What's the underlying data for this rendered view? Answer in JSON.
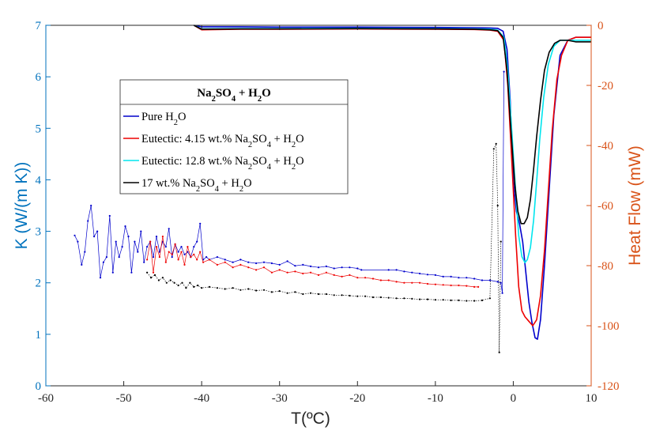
{
  "chart_data": {
    "type": "line",
    "xlabel": "T(ºC)",
    "ylabel_left": "K (W/(m K))",
    "ylabel_right": "Heat Flow (mW)",
    "xlim": [
      -60,
      10
    ],
    "ylim_left": [
      0,
      7
    ],
    "ylim_right": [
      -120,
      0
    ],
    "x_ticks": [
      -60,
      -50,
      -40,
      -30,
      -20,
      -10,
      0,
      10
    ],
    "y_left_ticks": [
      0,
      1,
      2,
      3,
      4,
      5,
      6,
      7
    ],
    "y_right_ticks": [
      -120,
      -100,
      -80,
      -60,
      -40,
      -20,
      0
    ],
    "colors": {
      "left_axis": "#0072bd",
      "right_axis": "#d95319",
      "pure": "#0000cc",
      "eutectic_415": "#ee0000",
      "eutectic_128": "#00e5ee",
      "wt17": "#000000"
    },
    "legend": {
      "title_parts": [
        [
          "Na",
          "normal"
        ],
        [
          "2",
          "sub"
        ],
        [
          "SO",
          "normal"
        ],
        [
          "4",
          "sub"
        ],
        [
          " + H",
          "normal"
        ],
        [
          "2",
          "sub"
        ],
        [
          "O",
          "normal"
        ]
      ],
      "entries": [
        {
          "color": "#0000cc",
          "parts": [
            [
              "Pure H",
              "normal"
            ],
            [
              "2",
              "sub"
            ],
            [
              "O",
              "normal"
            ]
          ]
        },
        {
          "color": "#ee0000",
          "parts": [
            [
              "Eutectic: 4.15 wt.% Na",
              "normal"
            ],
            [
              "2",
              "sub"
            ],
            [
              "SO",
              "normal"
            ],
            [
              "4",
              "sub"
            ],
            [
              " + H",
              "normal"
            ],
            [
              "2",
              "sub"
            ],
            [
              "O",
              "normal"
            ]
          ]
        },
        {
          "color": "#00e5ee",
          "parts": [
            [
              "Eutectic: 12.8 wt.% Na",
              "normal"
            ],
            [
              "2",
              "sub"
            ],
            [
              "SO",
              "normal"
            ],
            [
              "4",
              "sub"
            ],
            [
              " + H",
              "normal"
            ],
            [
              "2",
              "sub"
            ],
            [
              "O",
              "normal"
            ]
          ]
        },
        {
          "color": "#000000",
          "parts": [
            [
              "17 wt.% Na",
              "normal"
            ],
            [
              "2",
              "sub"
            ],
            [
              "SO",
              "normal"
            ],
            [
              "4",
              "sub"
            ],
            [
              " + H",
              "normal"
            ],
            [
              "2",
              "sub"
            ],
            [
              "O",
              "normal"
            ]
          ]
        }
      ]
    },
    "series_heatflow": [
      {
        "name": "Pure H2O",
        "color": "#0000cc",
        "x": [
          -41,
          -40,
          -35,
          -30,
          -20,
          -10,
          -5,
          -3,
          -2,
          -1.3,
          -0.8,
          -0.4,
          0,
          0.4,
          0.8,
          1.2,
          1.6,
          2.0,
          2.4,
          2.8,
          3.1,
          3.5,
          4.0,
          4.6,
          5.2,
          6,
          7,
          8,
          9,
          10
        ],
        "y": [
          0,
          -0.5,
          -0.5,
          -0.6,
          -0.6,
          -0.7,
          -0.8,
          -0.9,
          -1.0,
          -2,
          -8,
          -25,
          -52,
          -62,
          -66,
          -72,
          -82,
          -92,
          -99,
          -104,
          -104.5,
          -98,
          -80,
          -55,
          -30,
          -10,
          -5,
          -4,
          -4,
          -4
        ]
      },
      {
        "name": "Eutectic: 4.15 wt.% Na2SO4 + H2O",
        "color": "#ee0000",
        "x": [
          -41,
          -40,
          -35,
          -30,
          -20,
          -10,
          -5,
          -3,
          -2,
          -1.2,
          -0.7,
          -0.2,
          0.3,
          0.7,
          1.1,
          1.5,
          2.0,
          2.5,
          3.0,
          3.5,
          4.0,
          4.5,
          5.0,
          5.6,
          6.2,
          7,
          8,
          9,
          10
        ],
        "y": [
          0,
          -1.5,
          -1.3,
          -1.3,
          -1.2,
          -1.3,
          -1.4,
          -1.6,
          -2,
          -5,
          -20,
          -45,
          -70,
          -87,
          -95,
          -97,
          -98.5,
          -100,
          -98,
          -90,
          -75,
          -55,
          -35,
          -18,
          -10,
          -5,
          -4,
          -4,
          -4
        ]
      },
      {
        "name": "Eutectic: 12.8 wt.% Na2SO4 + H2O",
        "color": "#00e5ee",
        "x": [
          -41,
          -40,
          -35,
          -30,
          -20,
          -10,
          -5,
          -3,
          -2,
          -1.2,
          -0.7,
          -0.2,
          0.3,
          0.7,
          1.1,
          1.5,
          1.8,
          2.2,
          2.6,
          3.0,
          3.4,
          3.9,
          4.5,
          5.2,
          6,
          7,
          8,
          10
        ],
        "y": [
          0,
          -1.2,
          -1.1,
          -1.1,
          -1.0,
          -1.1,
          -1.2,
          -1.3,
          -1.6,
          -4,
          -15,
          -35,
          -55,
          -70,
          -77,
          -79,
          -78,
          -74,
          -65,
          -52,
          -38,
          -24,
          -13,
          -7,
          -5,
          -5,
          -5,
          -5
        ]
      },
      {
        "name": "17 wt.% Na2SO4 + H2O",
        "color": "#000000",
        "x": [
          -41,
          -40,
          -35,
          -30,
          -20,
          -10,
          -5,
          -3,
          -2,
          -1.3,
          -0.8,
          -0.3,
          0.2,
          0.6,
          1.0,
          1.4,
          1.8,
          2.2,
          2.6,
          3.0,
          3.5,
          4.0,
          4.6,
          5.3,
          6,
          7,
          8,
          10
        ],
        "y": [
          0,
          -1.3,
          -1.2,
          -1.2,
          -1.1,
          -1.2,
          -1.3,
          -1.5,
          -1.8,
          -4,
          -15,
          -35,
          -53,
          -62,
          -66,
          -66,
          -64,
          -58,
          -48,
          -37,
          -25,
          -15,
          -9,
          -6,
          -5,
          -5,
          -5.5,
          -5.5
        ]
      }
    ],
    "series_conductivity": [
      {
        "name": "Pure H2O",
        "color": "#0000cc",
        "x": [
          -56.3,
          -55.9,
          -55.4,
          -55.0,
          -54.6,
          -54.2,
          -53.8,
          -53.4,
          -53.0,
          -52.6,
          -52.2,
          -51.8,
          -51.4,
          -51.0,
          -50.6,
          -50.2,
          -49.8,
          -49.4,
          -49.0,
          -48.6,
          -48.2,
          -47.8,
          -47.4,
          -47.0,
          -46.6,
          -46.2,
          -45.8,
          -45.4,
          -45.0,
          -44.6,
          -44.2,
          -43.8,
          -43.4,
          -43.0,
          -42.6,
          -42.2,
          -41.8,
          -41.4,
          -41.0,
          -40.6,
          -40.2,
          -39.8,
          -39.4,
          -39.0,
          -38.0,
          -37.0,
          -36.0,
          -35.0,
          -34.0,
          -33.0,
          -32.0,
          -31.0,
          -30.0,
          -29.0,
          -28.0,
          -27.0,
          -26.0,
          -25.0,
          -24.0,
          -23.0,
          -22.0,
          -21.0,
          -20.0,
          -19.5,
          -16.0,
          -15.0,
          -14.0,
          -13.0,
          -12.0,
          -11.0,
          -10.0,
          -9.0,
          -8.0,
          -7.0,
          -6.0,
          -5.0,
          -4.0,
          -3.0,
          -2.0,
          -1.6,
          -1.4,
          -1.2
        ],
        "y": [
          2.92,
          2.8,
          2.35,
          2.6,
          3.2,
          3.5,
          2.9,
          3.0,
          2.1,
          2.4,
          2.5,
          3.3,
          2.2,
          2.8,
          2.5,
          2.7,
          3.1,
          2.9,
          2.2,
          2.8,
          2.6,
          3.0,
          2.4,
          2.7,
          2.8,
          2.5,
          2.9,
          2.6,
          2.8,
          2.7,
          3.05,
          2.5,
          2.75,
          2.6,
          2.7,
          2.55,
          2.6,
          2.5,
          2.7,
          2.8,
          3.15,
          2.45,
          2.5,
          2.45,
          2.5,
          2.45,
          2.4,
          2.45,
          2.4,
          2.38,
          2.4,
          2.38,
          2.35,
          2.42,
          2.33,
          2.35,
          2.32,
          2.3,
          2.32,
          2.28,
          2.3,
          2.3,
          2.28,
          2.25,
          2.25,
          2.25,
          2.22,
          2.2,
          2.18,
          2.16,
          2.15,
          2.12,
          2.12,
          2.1,
          2.1,
          2.08,
          2.05,
          2.05,
          2.02,
          2.0,
          1.8,
          6.1
        ]
      },
      {
        "name": "Eutectic: 4.15 wt.% Na2SO4 + H2O",
        "color": "#ee0000",
        "x": [
          -47.0,
          -46.6,
          -46.2,
          -45.8,
          -45.4,
          -45.0,
          -44.6,
          -44.2,
          -43.8,
          -43.4,
          -43.0,
          -42.6,
          -42.2,
          -41.8,
          -41.4,
          -41.0,
          -40.6,
          -40.2,
          -39.8,
          -39.0,
          -38.0,
          -37.0,
          -36.0,
          -35.0,
          -34.0,
          -33.0,
          -32.0,
          -31.0,
          -30.0,
          -29.0,
          -28.0,
          -27.0,
          -26.0,
          -25.0,
          -24.0,
          -23.0,
          -22.0,
          -21.0,
          -20.0,
          -19.0,
          -18.0,
          -17.0,
          -16.0,
          -15.0,
          -14.0,
          -13.0,
          -12.0,
          -11.0,
          -10.0,
          -9.0,
          -8.0,
          -7.0,
          -6.0,
          -5.0,
          -4.5
        ],
        "y": [
          2.45,
          2.8,
          2.2,
          2.7,
          2.5,
          2.9,
          2.4,
          2.6,
          2.55,
          2.75,
          2.45,
          2.6,
          2.35,
          2.7,
          2.5,
          2.55,
          2.45,
          2.6,
          2.4,
          2.45,
          2.35,
          2.4,
          2.3,
          2.35,
          2.3,
          2.25,
          2.3,
          2.2,
          2.25,
          2.2,
          2.22,
          2.18,
          2.2,
          2.15,
          2.2,
          2.15,
          2.12,
          2.15,
          2.1,
          2.1,
          2.08,
          2.05,
          2.05,
          2.02,
          2.0,
          2.0,
          2.0,
          1.98,
          1.97,
          1.96,
          1.95,
          1.95,
          1.94,
          1.92,
          1.92
        ]
      },
      {
        "name": "17 wt.% Na2SO4 + H2O",
        "color": "#000000",
        "x": [
          -47.0,
          -46.5,
          -46.0,
          -45.5,
          -45.0,
          -44.5,
          -44.0,
          -43.5,
          -43.0,
          -42.5,
          -42.0,
          -41.5,
          -41.0,
          -40.5,
          -40.0,
          -39.0,
          -38.0,
          -37.0,
          -36.0,
          -35.0,
          -34.0,
          -33.0,
          -32.0,
          -31.0,
          -30.0,
          -29.0,
          -28.0,
          -27.0,
          -26.0,
          -25.0,
          -24.0,
          -23.0,
          -22.0,
          -21.0,
          -20.0,
          -19.0,
          -18.0,
          -17.0,
          -16.0,
          -15.0,
          -14.0,
          -13.0,
          -12.0,
          -11.0,
          -10.0,
          -9.0,
          -8.0,
          -7.0,
          -6.0,
          -5.0,
          -4.0,
          -3.0,
          -2.5,
          -2.2,
          -2.0,
          -1.8,
          -1.6
        ],
        "y": [
          2.2,
          2.1,
          2.15,
          2.05,
          2.1,
          2.0,
          2.05,
          2.0,
          1.95,
          2.0,
          1.9,
          2.0,
          1.92,
          1.95,
          1.9,
          1.92,
          1.9,
          1.88,
          1.9,
          1.86,
          1.88,
          1.85,
          1.86,
          1.82,
          1.84,
          1.8,
          1.82,
          1.78,
          1.8,
          1.78,
          1.78,
          1.76,
          1.76,
          1.75,
          1.74,
          1.74,
          1.72,
          1.72,
          1.71,
          1.7,
          1.7,
          1.69,
          1.68,
          1.68,
          1.67,
          1.67,
          1.66,
          1.66,
          1.65,
          1.65,
          1.66,
          1.7,
          4.6,
          4.7,
          3.5,
          0.65,
          2.8
        ]
      }
    ]
  }
}
